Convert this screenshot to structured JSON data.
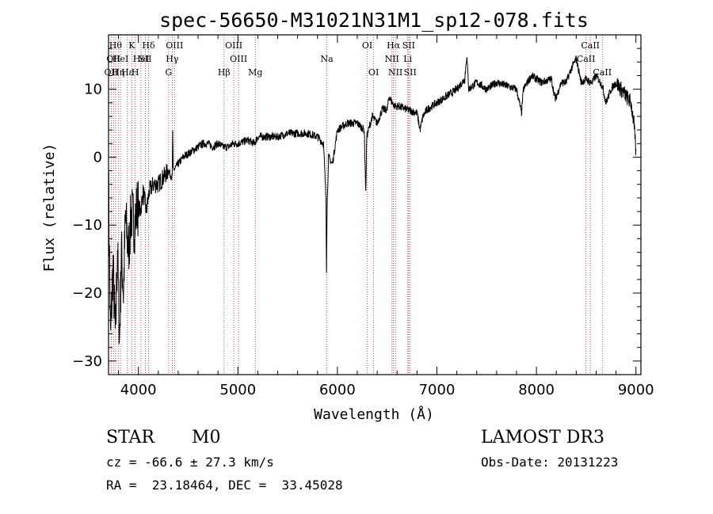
{
  "chart_data": {
    "type": "line",
    "title": "spec-56650-M31021N31M1_sp12-078.fits",
    "xlabel": "Wavelength (Å)",
    "ylabel": "Flux (relative)",
    "xlim": [
      3700,
      9050
    ],
    "ylim": [
      -32,
      18
    ],
    "xticks": [
      4000,
      5000,
      6000,
      7000,
      8000,
      9000
    ],
    "yticks": [
      -30,
      -20,
      -10,
      0,
      10
    ],
    "series": [
      {
        "name": "spectrum",
        "anchors": [
          [
            3700,
            -3
          ],
          [
            3720,
            -27
          ],
          [
            3745,
            -16
          ],
          [
            3770,
            -27
          ],
          [
            3790,
            -13
          ],
          [
            3810,
            -27
          ],
          [
            3830,
            -14
          ],
          [
            3850,
            -20
          ],
          [
            3870,
            -9
          ],
          [
            3900,
            -14
          ],
          [
            3930,
            -8
          ],
          [
            3960,
            -10
          ],
          [
            3990,
            -7
          ],
          [
            4020,
            -8
          ],
          [
            4050,
            -5
          ],
          [
            4080,
            -8
          ],
          [
            4110,
            -5
          ],
          [
            4150,
            -4
          ],
          [
            4200,
            -4
          ],
          [
            4250,
            -3
          ],
          [
            4300,
            -2
          ],
          [
            4340,
            -3
          ],
          [
            4345,
            4
          ],
          [
            4350,
            -2
          ],
          [
            4400,
            -1
          ],
          [
            4450,
            0
          ],
          [
            4500,
            0.5
          ],
          [
            4550,
            1
          ],
          [
            4600,
            1.5
          ],
          [
            4650,
            2
          ],
          [
            4700,
            2
          ],
          [
            4750,
            1.5
          ],
          [
            4800,
            2
          ],
          [
            4850,
            1.5
          ],
          [
            4900,
            1.5
          ],
          [
            4950,
            2
          ],
          [
            5000,
            2
          ],
          [
            5100,
            2.5
          ],
          [
            5167,
            2
          ],
          [
            5200,
            3
          ],
          [
            5300,
            3
          ],
          [
            5400,
            3
          ],
          [
            5500,
            3.5
          ],
          [
            5600,
            3.5
          ],
          [
            5700,
            3.5
          ],
          [
            5800,
            3
          ],
          [
            5860,
            2
          ],
          [
            5885,
            -6
          ],
          [
            5890,
            -16.5
          ],
          [
            5896,
            -8
          ],
          [
            5910,
            0
          ],
          [
            5950,
            -1
          ],
          [
            6000,
            4
          ],
          [
            6100,
            5
          ],
          [
            6200,
            5
          ],
          [
            6270,
            4
          ],
          [
            6285,
            -5.5
          ],
          [
            6295,
            3
          ],
          [
            6350,
            6
          ],
          [
            6400,
            5
          ],
          [
            6450,
            7
          ],
          [
            6500,
            7
          ],
          [
            6520,
            9
          ],
          [
            6550,
            8
          ],
          [
            6580,
            7.5
          ],
          [
            6620,
            7.5
          ],
          [
            6700,
            7
          ],
          [
            6800,
            6.5
          ],
          [
            6830,
            4
          ],
          [
            6860,
            6
          ],
          [
            6900,
            7
          ],
          [
            7000,
            8
          ],
          [
            7100,
            9
          ],
          [
            7200,
            10
          ],
          [
            7280,
            11.5
          ],
          [
            7300,
            15
          ],
          [
            7320,
            10
          ],
          [
            7400,
            11
          ],
          [
            7500,
            10
          ],
          [
            7600,
            11
          ],
          [
            7700,
            10.5
          ],
          [
            7800,
            10
          ],
          [
            7850,
            6.5
          ],
          [
            7870,
            10
          ],
          [
            7950,
            12
          ],
          [
            8050,
            11
          ],
          [
            8150,
            11.5
          ],
          [
            8190,
            8.5
          ],
          [
            8250,
            11
          ],
          [
            8300,
            11
          ],
          [
            8350,
            13
          ],
          [
            8400,
            14.5
          ],
          [
            8450,
            11
          ],
          [
            8500,
            11.5
          ],
          [
            8540,
            11
          ],
          [
            8560,
            11
          ],
          [
            8600,
            12
          ],
          [
            8662,
            10.5
          ],
          [
            8700,
            8
          ],
          [
            8750,
            10
          ],
          [
            8800,
            11
          ],
          [
            8850,
            10
          ],
          [
            8900,
            9
          ],
          [
            8950,
            8
          ],
          [
            8980,
            5
          ],
          [
            9000,
            0.5
          ]
        ]
      }
    ],
    "lines": [
      {
        "wl": 3727,
        "name": "OII",
        "row": 2
      },
      {
        "wl": 3750,
        "name": "OII",
        "row": 1
      },
      {
        "wl": 3771,
        "name": "Hθ",
        "row": 0
      },
      {
        "wl": 3798,
        "name": "Hη",
        "row": 2
      },
      {
        "wl": 3820,
        "name": "HeI",
        "row": 1
      },
      {
        "wl": 3889,
        "name": "Hε",
        "row": 2
      },
      {
        "wl": 3934,
        "name": "K",
        "row": 0
      },
      {
        "wl": 3968,
        "name": "H",
        "row": 2
      },
      {
        "wl": 4026,
        "name": "HeI",
        "row": 1
      },
      {
        "wl": 4069,
        "name": "SII",
        "row": 1
      },
      {
        "wl": 4102,
        "name": "Hδ",
        "row": 0
      },
      {
        "wl": 4304,
        "name": "G",
        "row": 2
      },
      {
        "wl": 4340,
        "name": "Hγ",
        "row": 1
      },
      {
        "wl": 4363,
        "name": "OIII",
        "row": 0
      },
      {
        "wl": 4861,
        "name": "Hβ",
        "row": 2
      },
      {
        "wl": 4959,
        "name": "OIII",
        "row": 0
      },
      {
        "wl": 5007,
        "name": "OIII",
        "row": 1
      },
      {
        "wl": 5175,
        "name": "Mg",
        "row": 2
      },
      {
        "wl": 5894,
        "name": "Na",
        "row": 1
      },
      {
        "wl": 6300,
        "name": "OI",
        "row": 0
      },
      {
        "wl": 6364,
        "name": "OI",
        "row": 2
      },
      {
        "wl": 6548,
        "name": "NII",
        "row": 1
      },
      {
        "wl": 6563,
        "name": "Hα",
        "row": 0
      },
      {
        "wl": 6583,
        "name": "NII",
        "row": 2
      },
      {
        "wl": 6707,
        "name": "Li",
        "row": 1
      },
      {
        "wl": 6716,
        "name": "SII",
        "row": 0
      },
      {
        "wl": 6731,
        "name": "SII",
        "row": 2
      },
      {
        "wl": 8498,
        "name": "CaII",
        "row": 1
      },
      {
        "wl": 8542,
        "name": "CaII",
        "row": 0
      },
      {
        "wl": 8662,
        "name": "CaII",
        "row": 2
      }
    ]
  },
  "info": {
    "class_label": "STAR",
    "subclass": "M0",
    "survey": "LAMOST DR3",
    "cz_text": "cz = -66.6 ± 27.3 km/s",
    "obs_date_text": "Obs-Date: 20131223",
    "coords_text": "RA =  23.18464, DEC =  33.45028"
  },
  "colors": {
    "spectrum": "#000000",
    "line_marker": "#b22222",
    "axes": "#000000"
  }
}
